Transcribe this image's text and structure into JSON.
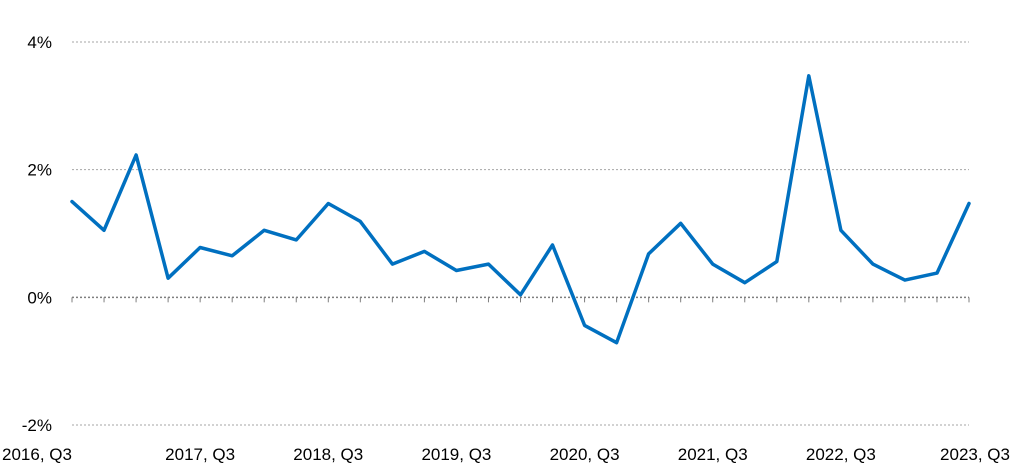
{
  "chart_data": {
    "type": "line",
    "title": "",
    "xlabel": "",
    "ylabel": "",
    "ylim": [
      -2,
      4
    ],
    "y_ticks": [
      "-2%",
      "0%",
      "2%",
      "4%"
    ],
    "y_tick_values": [
      -2,
      0,
      2,
      4
    ],
    "grid": true,
    "x_labels": [
      "2016, Q3",
      "2017, Q3",
      "2018, Q3",
      "2019, Q3",
      "2020, Q3",
      "2021, Q3",
      "2022, Q3",
      "2023, Q3"
    ],
    "x_label_indices": [
      0,
      4,
      8,
      12,
      16,
      20,
      24,
      28
    ],
    "series": [
      {
        "color": "#0070c0",
        "values": [
          1.5,
          1.05,
          2.23,
          0.3,
          0.78,
          0.65,
          1.05,
          0.9,
          1.47,
          1.19,
          0.52,
          0.72,
          0.42,
          0.52,
          0.04,
          0.82,
          -0.44,
          -0.71,
          0.68,
          1.16,
          0.52,
          0.23,
          0.56,
          3.47,
          1.05,
          0.52,
          0.27,
          0.38,
          1.47
        ]
      }
    ]
  }
}
